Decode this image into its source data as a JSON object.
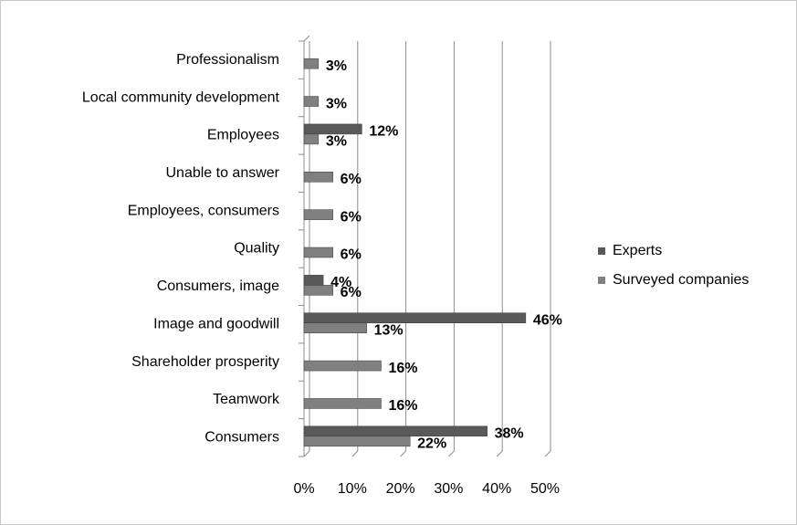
{
  "chart_data": {
    "type": "bar",
    "orientation": "horizontal",
    "categories": [
      "Professionalism",
      "Local community development",
      "Employees",
      "Unable to answer",
      "Employees, consumers",
      "Quality",
      "Consumers, image",
      "Image and goodwill",
      "Shareholder prosperity",
      "Teamwork",
      "Consumers"
    ],
    "series": [
      {
        "name": "Experts",
        "color": "#595959",
        "values": [
          null,
          null,
          12,
          null,
          null,
          null,
          4,
          46,
          null,
          null,
          38
        ],
        "value_labels": [
          null,
          null,
          "12%",
          null,
          null,
          null,
          "4%",
          "46%",
          null,
          null,
          "38%"
        ]
      },
      {
        "name": "Surveyed companies",
        "color": "#808080",
        "values": [
          3,
          3,
          3,
          6,
          6,
          6,
          6,
          13,
          16,
          16,
          22
        ],
        "value_labels": [
          "3%",
          "3%",
          "3%",
          "6%",
          "6%",
          "6%",
          "6%",
          "13%",
          "16%",
          "16%",
          "22%"
        ]
      }
    ],
    "xlim": [
      0,
      50
    ],
    "xticks": [
      {
        "value": 0,
        "label": "0%"
      },
      {
        "value": 10,
        "label": "10%"
      },
      {
        "value": 20,
        "label": "20%"
      },
      {
        "value": 30,
        "label": "30%"
      },
      {
        "value": 40,
        "label": "40%"
      },
      {
        "value": 50,
        "label": "50%"
      }
    ],
    "grid": true,
    "legend": "right"
  }
}
